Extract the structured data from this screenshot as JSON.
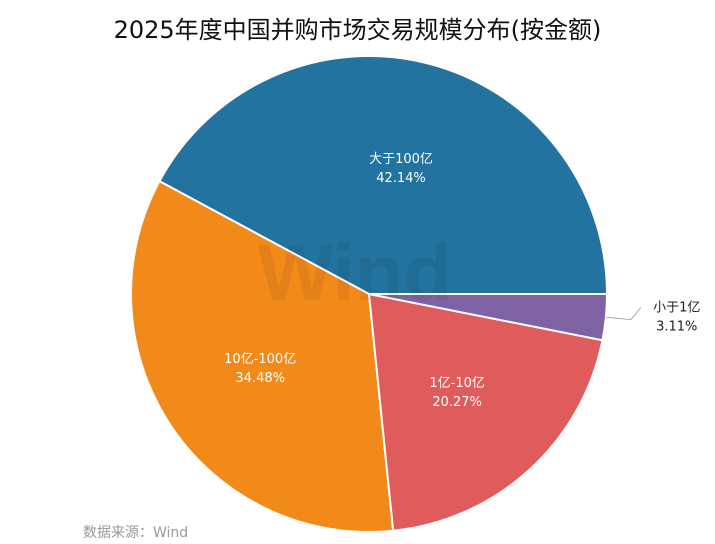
{
  "chart_data": {
    "type": "pie",
    "title": "2025年度中国并购市场交易规模分布(按金额)",
    "slices": [
      {
        "label": "大于100亿",
        "value": 42.14,
        "value_text": "42.14%",
        "color": "#22739f",
        "label_inside": true
      },
      {
        "label": "10亿-100亿",
        "value": 34.48,
        "value_text": "34.48%",
        "color": "#f28a1a",
        "label_inside": true
      },
      {
        "label": "1亿-10亿",
        "value": 20.27,
        "value_text": "20.27%",
        "color": "#e05c5c",
        "label_inside": true
      },
      {
        "label": "小于1亿",
        "value": 3.11,
        "value_text": "3.11%",
        "color": "#7e62a3",
        "label_inside": false
      }
    ],
    "start": "right, counterclockwise"
  },
  "watermark": "Wind",
  "source": "数据来源：Wind"
}
